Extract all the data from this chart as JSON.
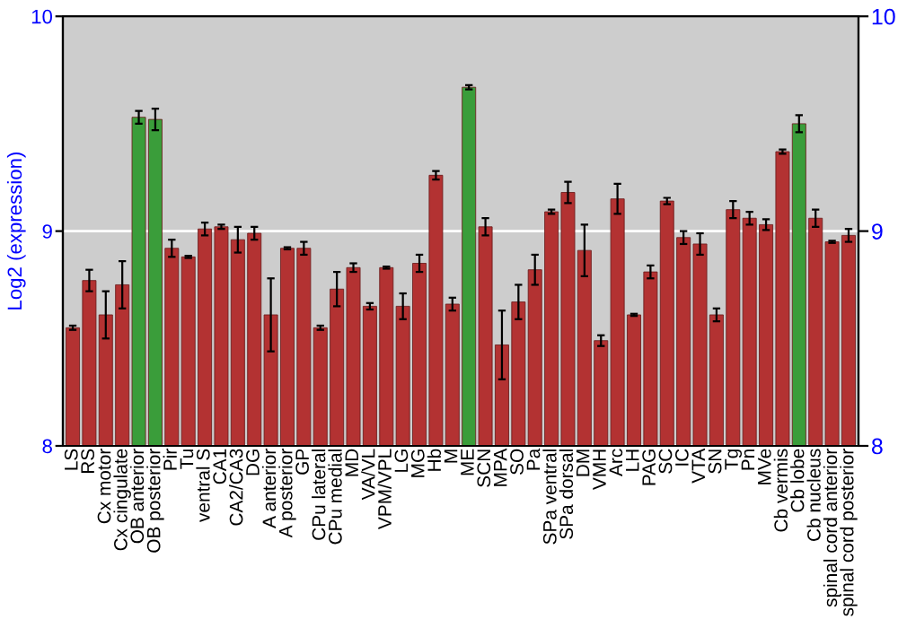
{
  "chart_data": {
    "type": "bar",
    "ylabel": "Log2 (expression)",
    "categories": [
      "LS",
      "RS",
      "Cx motor",
      "Cx cingulate",
      "OB anterior",
      "OB posterior",
      "Pir",
      "Tu",
      "ventral S",
      "CA1",
      "CA2/CA3",
      "DG",
      "A anterior",
      "A posterior",
      "GP",
      "CPu lateral",
      "CPu medial",
      "MD",
      "VA/VL",
      "VPM/VPL",
      "LG",
      "MG",
      "Hb",
      "M",
      "ME",
      "SCN",
      "MPA",
      "SO",
      "Pa",
      "SPa ventral",
      "SPa dorsal",
      "DM",
      "VMH",
      "Arc",
      "LH",
      "PAG",
      "SC",
      "IC",
      "VTA",
      "SN",
      "Tg",
      "Pn",
      "MVe",
      "Cb vermis",
      "Cb lobe",
      "Cb nucleus",
      "spinal cord anterior",
      "spinal cord posterior"
    ],
    "values": [
      8.55,
      8.77,
      8.61,
      8.75,
      9.53,
      9.52,
      8.92,
      8.88,
      9.01,
      9.02,
      8.96,
      8.99,
      8.61,
      8.92,
      8.92,
      8.55,
      8.73,
      8.83,
      8.65,
      8.83,
      8.65,
      8.85,
      9.26,
      8.66,
      9.67,
      9.02,
      8.47,
      8.67,
      8.82,
      9.09,
      9.18,
      8.91,
      8.49,
      9.15,
      8.61,
      8.81,
      9.14,
      8.97,
      8.94,
      8.61,
      9.1,
      9.06,
      9.03,
      9.37,
      9.5,
      9.06,
      8.95,
      8.98
    ],
    "errors": [
      0.01,
      0.05,
      0.11,
      0.11,
      0.03,
      0.05,
      0.04,
      0.005,
      0.03,
      0.01,
      0.06,
      0.03,
      0.17,
      0.005,
      0.03,
      0.01,
      0.08,
      0.02,
      0.015,
      0.005,
      0.06,
      0.04,
      0.02,
      0.03,
      0.01,
      0.04,
      0.16,
      0.08,
      0.07,
      0.01,
      0.05,
      0.12,
      0.025,
      0.07,
      0.005,
      0.03,
      0.015,
      0.03,
      0.05,
      0.03,
      0.04,
      0.03,
      0.025,
      0.01,
      0.04,
      0.04,
      0.005,
      0.03
    ],
    "colors": [
      "#b33232",
      "#b33232",
      "#b33232",
      "#b33232",
      "#3a9d3a",
      "#3a9d3a",
      "#b33232",
      "#b33232",
      "#b33232",
      "#b33232",
      "#b33232",
      "#b33232",
      "#b33232",
      "#b33232",
      "#b33232",
      "#b33232",
      "#b33232",
      "#b33232",
      "#b33232",
      "#b33232",
      "#b33232",
      "#b33232",
      "#b33232",
      "#b33232",
      "#3a9d3a",
      "#b33232",
      "#b33232",
      "#b33232",
      "#b33232",
      "#b33232",
      "#b33232",
      "#b33232",
      "#b33232",
      "#b33232",
      "#b33232",
      "#b33232",
      "#b33232",
      "#b33232",
      "#b33232",
      "#b33232",
      "#b33232",
      "#b33232",
      "#b33232",
      "#b33232",
      "#3a9d3a",
      "#b33232",
      "#b33232",
      "#b33232"
    ],
    "ylim": [
      8,
      10
    ],
    "yticks": [
      8,
      9,
      10
    ],
    "y2lim": [
      8,
      10
    ],
    "y2ticks": [
      8,
      9,
      10
    ],
    "grid": "y"
  }
}
